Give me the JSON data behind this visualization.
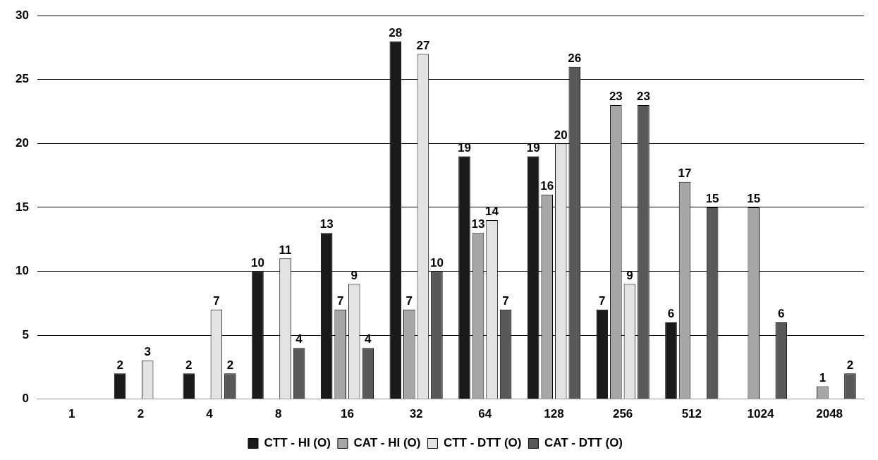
{
  "chart_data": {
    "type": "bar",
    "categories": [
      "1",
      "2",
      "4",
      "8",
      "16",
      "32",
      "64",
      "128",
      "256",
      "512",
      "1024",
      "2048"
    ],
    "series": [
      {
        "name": "CTT - HI (O)",
        "color": "#1a1a1a",
        "values": [
          null,
          2,
          2,
          10,
          13,
          28,
          19,
          19,
          7,
          6,
          null,
          null
        ]
      },
      {
        "name": "CAT - HI (O)",
        "color": "#a6a6a6",
        "values": [
          null,
          null,
          null,
          null,
          7,
          7,
          13,
          16,
          23,
          17,
          15,
          1
        ]
      },
      {
        "name": "CTT - DTT (O)",
        "color": "#e3e3e3",
        "values": [
          null,
          3,
          7,
          11,
          9,
          27,
          14,
          20,
          9,
          null,
          null,
          null
        ]
      },
      {
        "name": "CAT - DTT (O)",
        "color": "#595959",
        "values": [
          null,
          null,
          2,
          4,
          4,
          10,
          7,
          26,
          23,
          15,
          6,
          2
        ]
      }
    ],
    "ylim": [
      0,
      30
    ],
    "yticks": [
      0,
      5,
      10,
      15,
      20,
      25,
      30
    ],
    "grid": "y",
    "legend": "bottom",
    "data_labels": true
  }
}
